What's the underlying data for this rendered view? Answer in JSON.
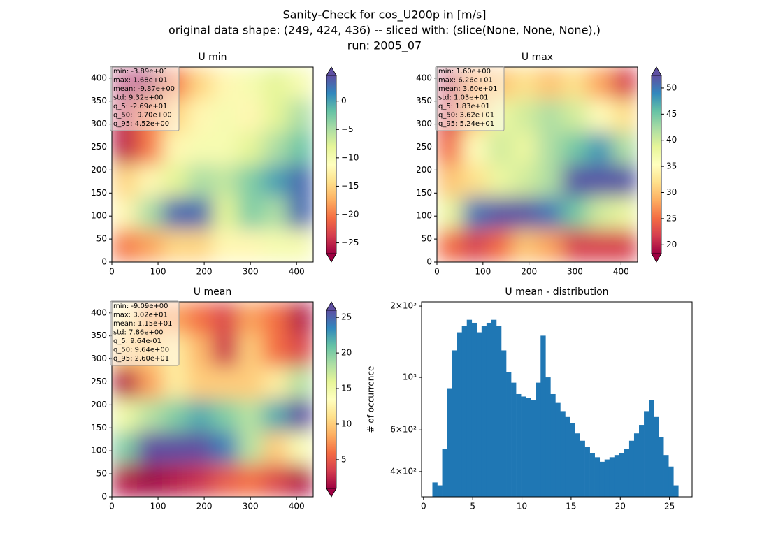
{
  "suptitle": [
    "Sanity-Check for cos_U200p in [m/s]",
    "original data shape: (249, 424, 436) -- sliced with: (slice(None, None, None),)",
    "run: 2005_07"
  ],
  "chart_data": [
    {
      "type": "heatmap",
      "title": "U min",
      "colormap": "Spectral",
      "xlim": [
        0,
        436
      ],
      "ylim": [
        0,
        424
      ],
      "xticks": [
        0,
        100,
        200,
        300,
        400
      ],
      "yticks": [
        0,
        50,
        100,
        150,
        200,
        250,
        300,
        350,
        400
      ],
      "z": [
        [
          -27,
          -27,
          -20,
          -15,
          -12,
          -10,
          -8,
          -10
        ],
        [
          -25,
          -20,
          -15,
          -12,
          -10,
          -12,
          -8,
          -5
        ],
        [
          -25,
          -20,
          -12,
          -10,
          -10,
          -8,
          -5,
          -2
        ],
        [
          -15,
          -12,
          -8,
          -5,
          -6,
          -3,
          0,
          3
        ],
        [
          -12,
          -5,
          3,
          3,
          -8,
          -3,
          -5,
          3
        ],
        [
          -20,
          -18,
          -15,
          -15,
          -12,
          -12,
          -10,
          -10
        ]
      ],
      "clim": [
        -26.9,
        4.52
      ],
      "cticks": [
        {
          "value": -25,
          "label": "−25"
        },
        {
          "value": -20,
          "label": "−20"
        },
        {
          "value": -15,
          "label": "−15"
        },
        {
          "value": -10,
          "label": "−10"
        },
        {
          "value": -5,
          "label": "−5"
        },
        0
      ],
      "stats": [
        "min: -3.89e+01",
        "max: 1.68e+01",
        "mean: -9.87e+00",
        "std: 9.32e+00",
        "q_5: -2.69e+01",
        "q_50: -9.70e+00",
        "q_95: 4.52e+00"
      ]
    },
    {
      "type": "heatmap",
      "title": "U max",
      "colormap": "Spectral",
      "xlim": [
        0,
        436
      ],
      "ylim": [
        0,
        424
      ],
      "xticks": [
        0,
        100,
        200,
        300,
        400
      ],
      "yticks": [
        0,
        50,
        100,
        150,
        200,
        250,
        300,
        350,
        400
      ],
      "z": [
        [
          20,
          28,
          30,
          32,
          30,
          32,
          28,
          22
        ],
        [
          22,
          30,
          38,
          40,
          42,
          40,
          35,
          32
        ],
        [
          25,
          35,
          40,
          38,
          42,
          45,
          48,
          42
        ],
        [
          30,
          32,
          38,
          40,
          42,
          52,
          52,
          52
        ],
        [
          38,
          50,
          52,
          52,
          50,
          45,
          40,
          38
        ],
        [
          25,
          22,
          25,
          30,
          28,
          22,
          22,
          22
        ]
      ],
      "clim": [
        18.3,
        52.4
      ],
      "cticks": [
        20,
        25,
        30,
        35,
        40,
        45,
        50
      ],
      "stats": [
        "min: 1.60e+00",
        "max: 6.26e+01",
        "mean: 3.60e+01",
        "std: 1.03e+01",
        "q_5: 1.83e+01",
        "q_50: 3.62e+01",
        "q_95: 5.24e+01"
      ]
    },
    {
      "type": "heatmap",
      "title": "U mean",
      "colormap": "Spectral",
      "xlim": [
        0,
        436
      ],
      "ylim": [
        0,
        424
      ],
      "xticks": [
        0,
        100,
        200,
        300,
        400
      ],
      "yticks": [
        0,
        50,
        100,
        150,
        200,
        250,
        300,
        350,
        400
      ],
      "z": [
        [
          12,
          8,
          8,
          6,
          4,
          8,
          6,
          2
        ],
        [
          10,
          10,
          12,
          9,
          3,
          10,
          6,
          4
        ],
        [
          2,
          8,
          12,
          10,
          10,
          10,
          12,
          18
        ],
        [
          15,
          18,
          20,
          22,
          20,
          18,
          22,
          26
        ],
        [
          20,
          26,
          26,
          26,
          24,
          18,
          10,
          14
        ],
        [
          2,
          1,
          2,
          3,
          5,
          6,
          4,
          2
        ]
      ],
      "clim": [
        0.964,
        26.0
      ],
      "cticks": [
        5,
        10,
        15,
        20,
        25
      ],
      "stats": [
        "min: -9.09e+00",
        "max: 3.02e+01",
        "mean: 1.15e+01",
        "std: 7.86e+00",
        "q_5: 9.64e-01",
        "q_50: 9.64e+00",
        "q_95: 2.60e+01"
      ]
    },
    {
      "type": "histogram",
      "title": "U mean - distribution",
      "ylabel": "# of occurrence",
      "color": "#1f77b4",
      "yscale": "log",
      "xlim": [
        -0.2,
        27.3
      ],
      "ylim": [
        313,
        2084
      ],
      "xticks": [
        0,
        5,
        10,
        15,
        20,
        25
      ],
      "yticks": [
        {
          "value": 400,
          "label": "4×10²"
        },
        {
          "value": 600,
          "label": "6×10²"
        },
        {
          "value": 1000,
          "label": "10³"
        },
        {
          "value": 2000,
          "label": "2×10³"
        }
      ],
      "bins": [
        0.9,
        1.4,
        1.9,
        2.4,
        2.9,
        3.4,
        3.9,
        4.4,
        4.9,
        5.4,
        5.9,
        6.4,
        6.9,
        7.4,
        7.9,
        8.4,
        8.9,
        9.4,
        9.9,
        10.4,
        10.9,
        11.4,
        11.9,
        12.4,
        12.9,
        13.4,
        13.9,
        14.4,
        14.9,
        15.4,
        15.9,
        16.4,
        16.9,
        17.4,
        17.9,
        18.4,
        18.9,
        19.4,
        19.9,
        20.4,
        20.9,
        21.4,
        21.9,
        22.4,
        22.9,
        23.4,
        23.9,
        24.4,
        24.9,
        25.4,
        25.9
      ],
      "counts": [
        360,
        350,
        500,
        900,
        1300,
        1550,
        1650,
        1750,
        1700,
        1550,
        1650,
        1700,
        1750,
        1650,
        1300,
        1050,
        950,
        850,
        830,
        820,
        800,
        950,
        1500,
        1000,
        850,
        780,
        720,
        680,
        640,
        580,
        540,
        510,
        480,
        460,
        440,
        450,
        460,
        470,
        480,
        500,
        540,
        580,
        630,
        720,
        800,
        680,
        560,
        470,
        420,
        350
      ]
    }
  ]
}
